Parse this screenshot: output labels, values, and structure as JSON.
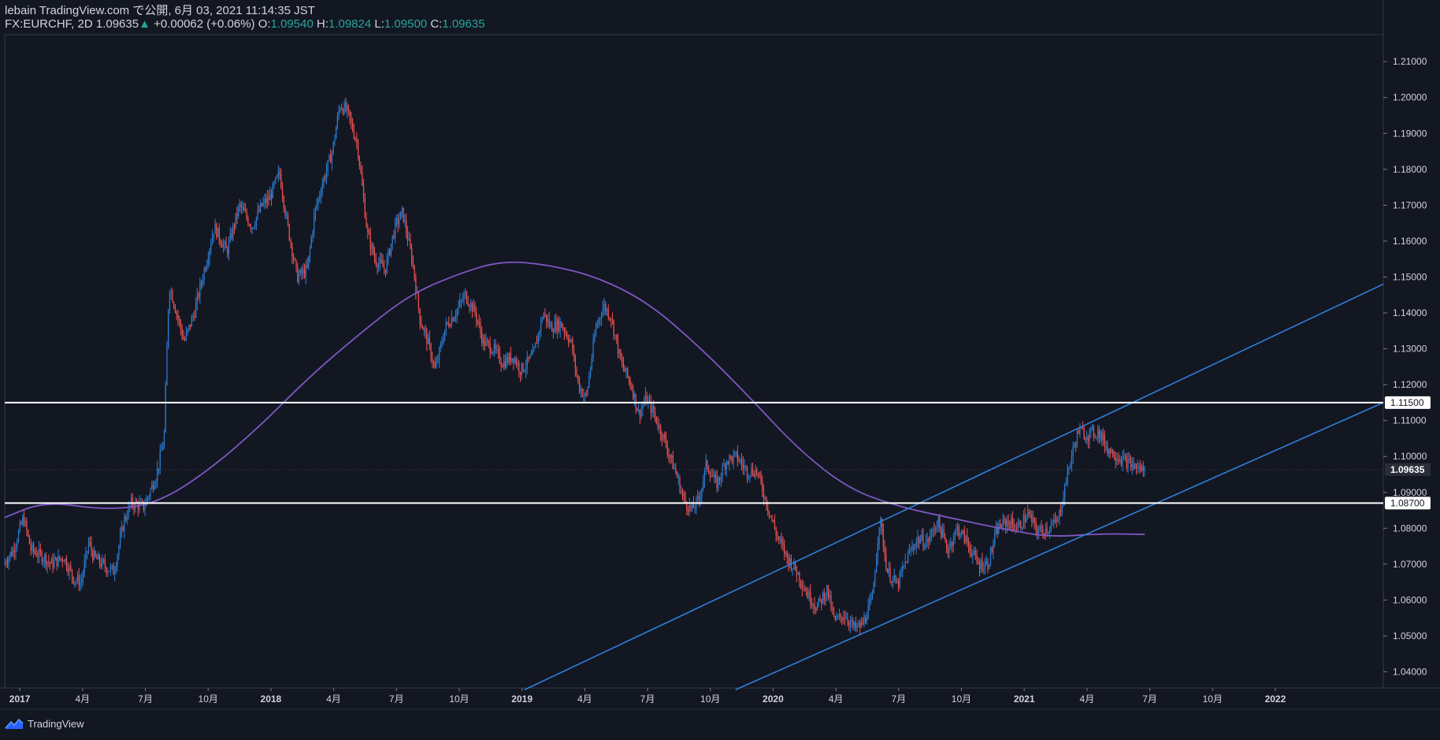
{
  "header": {
    "line1": "lebain TradingView.com で公開, 6月 03, 2021 11:14:35 JST",
    "symbol": "FX:EURCHF, 2D",
    "last": "1.09635",
    "arrow": "▲",
    "change": "+0.00062 (+0.06%)",
    "o_label": "O:",
    "o_val": "1.09540",
    "h_label": "H:",
    "h_val": "1.09824",
    "l_label": "L:",
    "l_val": "1.09500",
    "c_label": "C:",
    "c_val": "1.09635"
  },
  "footer": {
    "brand": "TradingView"
  },
  "colors": {
    "background": "#131722",
    "up": "#2a7fd4",
    "down": "#ef5350",
    "sma": "#7e57c2",
    "trendline": "#2f7fd8",
    "level": "#ffffff",
    "text": "#d1d4dc",
    "grid": "#2a2e39"
  },
  "chart_data": {
    "type": "candlestick",
    "symbol": "FX:EURCHF",
    "timeframe": "2D",
    "ylim": [
      1.0355,
      1.2175
    ],
    "y_ticks": [
      1.04,
      1.05,
      1.06,
      1.07,
      1.08,
      1.09,
      1.1,
      1.11,
      1.12,
      1.13,
      1.14,
      1.15,
      1.16,
      1.17,
      1.18,
      1.19,
      1.2,
      1.21
    ],
    "y_tick_labels": [
      "1.04000",
      "1.05000",
      "1.06000",
      "1.07000",
      "1.08000",
      "1.09000",
      "1.10000",
      "1.11000",
      "1.12000",
      "1.13000",
      "1.14000",
      "1.15000",
      "1.16000",
      "1.17000",
      "1.18000",
      "1.19000",
      "1.20000",
      "1.21000"
    ],
    "xlim": [
      2016.94,
      2022.43
    ],
    "x_ticks": [
      {
        "t": 2017.0,
        "label": "2017",
        "year": true
      },
      {
        "t": 2017.25,
        "label": "4月"
      },
      {
        "t": 2017.5,
        "label": "7月"
      },
      {
        "t": 2017.75,
        "label": "10月"
      },
      {
        "t": 2018.0,
        "label": "2018",
        "year": true
      },
      {
        "t": 2018.25,
        "label": "4月"
      },
      {
        "t": 2018.5,
        "label": "7月"
      },
      {
        "t": 2018.75,
        "label": "10月"
      },
      {
        "t": 2019.0,
        "label": "2019",
        "year": true
      },
      {
        "t": 2019.25,
        "label": "4月"
      },
      {
        "t": 2019.5,
        "label": "7月"
      },
      {
        "t": 2019.75,
        "label": "10月"
      },
      {
        "t": 2020.0,
        "label": "2020",
        "year": true
      },
      {
        "t": 2020.25,
        "label": "4月"
      },
      {
        "t": 2020.5,
        "label": "7月"
      },
      {
        "t": 2020.75,
        "label": "10月"
      },
      {
        "t": 2021.0,
        "label": "2021",
        "year": true
      },
      {
        "t": 2021.25,
        "label": "4月"
      },
      {
        "t": 2021.5,
        "label": "7月"
      },
      {
        "t": 2021.75,
        "label": "10月"
      },
      {
        "t": 2022.0,
        "label": "2022",
        "year": true
      }
    ],
    "price_path": [
      [
        2016.94,
        1.07
      ],
      [
        2016.98,
        1.074
      ],
      [
        2017.02,
        1.083
      ],
      [
        2017.05,
        1.074
      ],
      [
        2017.1,
        1.072
      ],
      [
        2017.13,
        1.07
      ],
      [
        2017.18,
        1.072
      ],
      [
        2017.22,
        1.066
      ],
      [
        2017.25,
        1.065
      ],
      [
        2017.28,
        1.076
      ],
      [
        2017.3,
        1.072
      ],
      [
        2017.35,
        1.069
      ],
      [
        2017.38,
        1.068
      ],
      [
        2017.42,
        1.082
      ],
      [
        2017.45,
        1.087
      ],
      [
        2017.5,
        1.086
      ],
      [
        2017.55,
        1.095
      ],
      [
        2017.58,
        1.105
      ],
      [
        2017.6,
        1.148
      ],
      [
        2017.63,
        1.14
      ],
      [
        2017.66,
        1.132
      ],
      [
        2017.7,
        1.14
      ],
      [
        2017.75,
        1.155
      ],
      [
        2017.78,
        1.164
      ],
      [
        2017.83,
        1.157
      ],
      [
        2017.88,
        1.17
      ],
      [
        2017.93,
        1.164
      ],
      [
        2017.97,
        1.17
      ],
      [
        2018.0,
        1.172
      ],
      [
        2018.04,
        1.179
      ],
      [
        2018.07,
        1.165
      ],
      [
        2018.11,
        1.15
      ],
      [
        2018.15,
        1.152
      ],
      [
        2018.18,
        1.168
      ],
      [
        2018.21,
        1.176
      ],
      [
        2018.25,
        1.185
      ],
      [
        2018.28,
        1.198
      ],
      [
        2018.31,
        1.196
      ],
      [
        2018.35,
        1.187
      ],
      [
        2018.39,
        1.162
      ],
      [
        2018.42,
        1.155
      ],
      [
        2018.46,
        1.152
      ],
      [
        2018.5,
        1.164
      ],
      [
        2018.53,
        1.168
      ],
      [
        2018.57,
        1.154
      ],
      [
        2018.6,
        1.138
      ],
      [
        2018.63,
        1.132
      ],
      [
        2018.66,
        1.124
      ],
      [
        2018.7,
        1.136
      ],
      [
        2018.74,
        1.14
      ],
      [
        2018.78,
        1.145
      ],
      [
        2018.82,
        1.14
      ],
      [
        2018.85,
        1.132
      ],
      [
        2018.89,
        1.13
      ],
      [
        2018.93,
        1.126
      ],
      [
        2018.97,
        1.128
      ],
      [
        2019.0,
        1.124
      ],
      [
        2019.05,
        1.128
      ],
      [
        2019.09,
        1.14
      ],
      [
        2019.12,
        1.136
      ],
      [
        2019.16,
        1.137
      ],
      [
        2019.2,
        1.132
      ],
      [
        2019.23,
        1.12
      ],
      [
        2019.26,
        1.116
      ],
      [
        2019.3,
        1.136
      ],
      [
        2019.33,
        1.142
      ],
      [
        2019.36,
        1.139
      ],
      [
        2019.4,
        1.126
      ],
      [
        2019.44,
        1.12
      ],
      [
        2019.47,
        1.112
      ],
      [
        2019.5,
        1.116
      ],
      [
        2019.53,
        1.112
      ],
      [
        2019.57,
        1.105
      ],
      [
        2019.62,
        1.095
      ],
      [
        2019.65,
        1.088
      ],
      [
        2019.68,
        1.085
      ],
      [
        2019.71,
        1.088
      ],
      [
        2019.74,
        1.098
      ],
      [
        2019.78,
        1.092
      ],
      [
        2019.82,
        1.099
      ],
      [
        2019.86,
        1.1
      ],
      [
        2019.9,
        1.096
      ],
      [
        2019.94,
        1.096
      ],
      [
        2019.98,
        1.087
      ],
      [
        2020.02,
        1.078
      ],
      [
        2020.06,
        1.072
      ],
      [
        2020.1,
        1.068
      ],
      [
        2020.14,
        1.062
      ],
      [
        2020.18,
        1.058
      ],
      [
        2020.22,
        1.063
      ],
      [
        2020.25,
        1.054
      ],
      [
        2020.29,
        1.056
      ],
      [
        2020.33,
        1.052
      ],
      [
        2020.36,
        1.053
      ],
      [
        2020.4,
        1.06
      ],
      [
        2020.43,
        1.083
      ],
      [
        2020.46,
        1.068
      ],
      [
        2020.5,
        1.064
      ],
      [
        2020.54,
        1.072
      ],
      [
        2020.58,
        1.077
      ],
      [
        2020.62,
        1.076
      ],
      [
        2020.66,
        1.082
      ],
      [
        2020.7,
        1.074
      ],
      [
        2020.74,
        1.08
      ],
      [
        2020.78,
        1.076
      ],
      [
        2020.82,
        1.07
      ],
      [
        2020.86,
        1.07
      ],
      [
        2020.9,
        1.08
      ],
      [
        2020.94,
        1.082
      ],
      [
        2020.98,
        1.08
      ],
      [
        2021.02,
        1.084
      ],
      [
        2021.06,
        1.079
      ],
      [
        2021.1,
        1.08
      ],
      [
        2021.14,
        1.082
      ],
      [
        2021.18,
        1.096
      ],
      [
        2021.22,
        1.107
      ],
      [
        2021.26,
        1.106
      ],
      [
        2021.3,
        1.107
      ],
      [
        2021.34,
        1.102
      ],
      [
        2021.38,
        1.1
      ],
      [
        2021.42,
        1.098
      ],
      [
        2021.45,
        1.097
      ],
      [
        2021.48,
        1.0963
      ]
    ],
    "sma": {
      "name": "Moving average",
      "points": [
        [
          2016.94,
          1.083
        ],
        [
          2017.1,
          1.0875
        ],
        [
          2017.35,
          1.085
        ],
        [
          2017.55,
          1.087
        ],
        [
          2017.75,
          1.096
        ],
        [
          2017.95,
          1.108
        ],
        [
          2018.15,
          1.122
        ],
        [
          2018.35,
          1.134
        ],
        [
          2018.55,
          1.145
        ],
        [
          2018.75,
          1.151
        ],
        [
          2018.92,
          1.1545
        ],
        [
          2019.1,
          1.1535
        ],
        [
          2019.3,
          1.15
        ],
        [
          2019.5,
          1.143
        ],
        [
          2019.7,
          1.131
        ],
        [
          2019.9,
          1.117
        ],
        [
          2020.1,
          1.102
        ],
        [
          2020.3,
          1.091
        ],
        [
          2020.5,
          1.086
        ],
        [
          2020.7,
          1.083
        ],
        [
          2020.9,
          1.08
        ],
        [
          2021.1,
          1.0775
        ],
        [
          2021.3,
          1.0785
        ],
        [
          2021.48,
          1.0783
        ]
      ]
    },
    "trendlines": [
      {
        "name": "upper-channel",
        "t1": 2019.01,
        "p1": 1.035,
        "t2": 2022.43,
        "p2": 1.148
      },
      {
        "name": "lower-channel",
        "t1": 2019.85,
        "p1": 1.035,
        "t2": 2022.43,
        "p2": 1.115
      }
    ],
    "levels": [
      {
        "name": "resistance",
        "price": 1.115,
        "label": "1.11500"
      },
      {
        "name": "support",
        "price": 1.087,
        "label": "1.08700"
      }
    ],
    "last_price": {
      "price": 1.09635,
      "label": "1.09635"
    }
  }
}
